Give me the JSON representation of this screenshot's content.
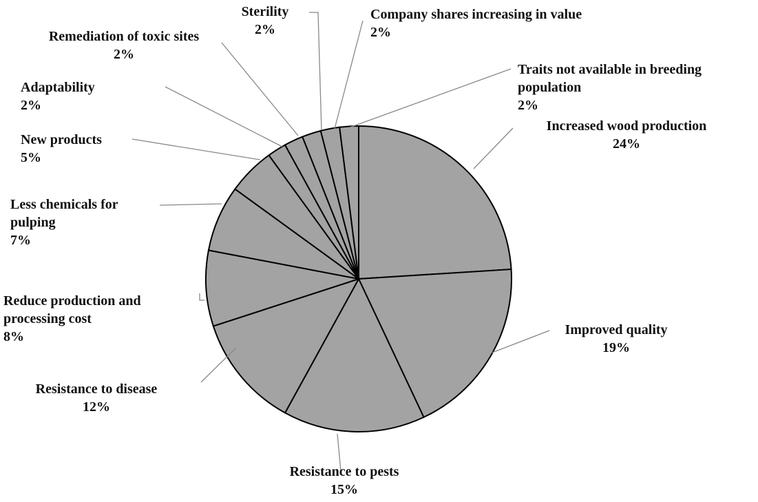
{
  "chart_data": {
    "type": "pie",
    "categories": [
      "Increased wood production",
      "Improved quality",
      "Resistance to pests",
      "Resistance to disease",
      "Reduce production and processing cost",
      "Less chemicals for pulping",
      "New products",
      "Adaptability",
      "Remediation of toxic sites",
      "Sterility",
      "Company shares increasing in value",
      "Traits not available in breeding population"
    ],
    "values": [
      24,
      19,
      15,
      12,
      8,
      7,
      5,
      2,
      2,
      2,
      2,
      2
    ],
    "value_labels": [
      "24%",
      "19%",
      "15%",
      "12%",
      "8%",
      "7%",
      "5%",
      "2%",
      "2%",
      "2%",
      "2%",
      "2%"
    ],
    "color": "#a3a3a3"
  }
}
